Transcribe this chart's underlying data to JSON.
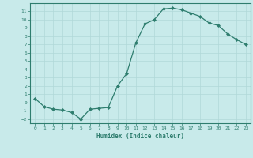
{
  "xlabel": "Humidex (Indice chaleur)",
  "ylabel": "",
  "x": [
    0,
    1,
    2,
    3,
    4,
    5,
    6,
    7,
    8,
    9,
    10,
    11,
    12,
    13,
    14,
    15,
    16,
    17,
    18,
    19,
    20,
    21,
    22,
    23
  ],
  "y": [
    0.5,
    -0.5,
    -0.8,
    -0.9,
    -1.2,
    -2.0,
    -0.8,
    -0.7,
    -0.6,
    2.0,
    3.5,
    7.2,
    9.5,
    10.0,
    11.3,
    11.4,
    11.2,
    10.8,
    10.4,
    9.6,
    9.3,
    8.3,
    7.6,
    7.0
  ],
  "line_color": "#2e7d6e",
  "marker": "D",
  "markersize": 2.0,
  "linewidth": 0.9,
  "bg_color": "#c8eaea",
  "grid_color": "#b0d8d8",
  "tick_color": "#2e7d6e",
  "label_color": "#2e7d6e",
  "ylim": [
    -2.5,
    12.0
  ],
  "xlim": [
    -0.5,
    23.5
  ],
  "yticks": [
    -2,
    -1,
    0,
    1,
    2,
    3,
    4,
    5,
    6,
    7,
    8,
    9,
    10,
    11
  ],
  "xticks": [
    0,
    1,
    2,
    3,
    4,
    5,
    6,
    7,
    8,
    9,
    10,
    11,
    12,
    13,
    14,
    15,
    16,
    17,
    18,
    19,
    20,
    21,
    22,
    23
  ]
}
